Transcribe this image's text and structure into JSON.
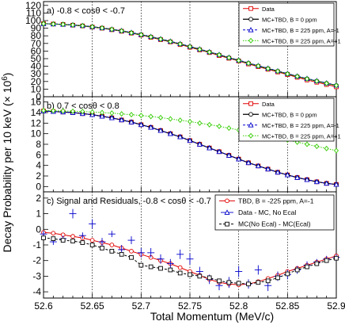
{
  "figure": {
    "ylabel": "Decay Probability per 10 keV (× 10",
    "ylabel_exp": "6",
    "ylabel_close": ")",
    "xlabel": "Total Momentum (MeV/c)"
  },
  "colors": {
    "data": "#e00000",
    "mc_b0": "#000000",
    "mc_am1": "#0000cc",
    "mc_ap1": "#33cc00",
    "tbd_res": "#e00000",
    "res_noecal": "#0000cc",
    "res_diff": "#000000",
    "vline": "#000000"
  },
  "chart_data": [
    {
      "type": "line",
      "panel_label": "a) -0.8 < cosθ < -0.7",
      "ylim": [
        0,
        125
      ],
      "yticks": [
        0,
        10,
        20,
        30,
        40,
        50,
        60,
        70,
        80,
        90,
        100,
        110,
        120
      ],
      "xlim": [
        52.6,
        52.9
      ],
      "legend": {
        "placement": "top-right",
        "entries": [
          "Data",
          "MC+TBD, B = 0 ppm",
          "MC+TBD, B = 225 ppm, A=-1",
          "MC+TBD, B = 225 ppm, A=+1"
        ]
      },
      "x": [
        52.6,
        52.61,
        52.62,
        52.63,
        52.64,
        52.65,
        52.66,
        52.67,
        52.68,
        52.69,
        52.7,
        52.71,
        52.72,
        52.73,
        52.74,
        52.75,
        52.76,
        52.77,
        52.78,
        52.79,
        52.8,
        52.81,
        52.82,
        52.83,
        52.84,
        52.85,
        52.86,
        52.87,
        52.88,
        52.89,
        52.9
      ],
      "series": [
        {
          "name": "Data",
          "values": [
            96,
            95.5,
            95,
            94,
            93,
            91.5,
            90,
            88,
            86,
            83.5,
            81,
            78,
            75,
            72,
            68.5,
            65,
            61.5,
            58,
            54,
            50.5,
            47,
            43,
            39.5,
            36,
            32.5,
            29,
            25.5,
            22,
            19,
            16,
            13
          ]
        },
        {
          "name": "MC+TBD, B = 0 ppm",
          "values": [
            96,
            95.5,
            95,
            94.2,
            93.2,
            91.8,
            90.3,
            88.4,
            86.5,
            84,
            81.5,
            78.6,
            75.6,
            72.5,
            69.2,
            65.8,
            62.2,
            58.6,
            55,
            51.3,
            47.6,
            44,
            40.4,
            37,
            33.5,
            30,
            26.7,
            23.5,
            20.5,
            17.6,
            14.8
          ]
        },
        {
          "name": "MC+TBD, B = 225 ppm, A=-1",
          "values": [
            96,
            95.6,
            95.1,
            94.4,
            93.4,
            92,
            90.5,
            88.7,
            86.8,
            84.4,
            81.9,
            79,
            76,
            72.9,
            69.6,
            66.2,
            62.6,
            59,
            55.4,
            51.7,
            48,
            44.4,
            40.8,
            37.4,
            33.9,
            30.4,
            27.1,
            23.9,
            20.9,
            18,
            15.2
          ]
        },
        {
          "name": "MC+TBD, B = 225 ppm, A=+1",
          "values": [
            96,
            95.5,
            95,
            94.2,
            93.2,
            91.8,
            90.3,
            88.4,
            86.4,
            83.9,
            81.4,
            78.5,
            75.5,
            72.4,
            69.1,
            65.7,
            62.1,
            58.5,
            54.9,
            51.2,
            47.5,
            43.9,
            40.3,
            36.9,
            33.4,
            29.9,
            26.6,
            23.4,
            20.4,
            17.5,
            14.7
          ]
        }
      ]
    },
    {
      "type": "line",
      "panel_label": "b) 0.7 < cosθ < 0.8",
      "ylim": [
        -1,
        17
      ],
      "yticks": [
        0,
        2,
        4,
        6,
        8,
        10,
        12,
        14,
        16
      ],
      "xlim": [
        52.6,
        52.9
      ],
      "legend": {
        "placement": "top-right",
        "entries": [
          "Data",
          "MC+TBD, B = 0 ppm",
          "MC+TBD, B = 225 ppm, A=-1",
          "MC+TBD, B = 225 ppm, A=+1"
        ]
      },
      "x": [
        52.6,
        52.61,
        52.62,
        52.63,
        52.64,
        52.65,
        52.66,
        52.67,
        52.68,
        52.69,
        52.7,
        52.71,
        52.72,
        52.73,
        52.74,
        52.75,
        52.76,
        52.77,
        52.78,
        52.79,
        52.8,
        52.81,
        52.82,
        52.83,
        52.84,
        52.85,
        52.86,
        52.87,
        52.88,
        52.89,
        52.9
      ],
      "series": [
        {
          "name": "Data",
          "values": [
            14.3,
            14.2,
            14.1,
            14,
            13.8,
            13.6,
            13.3,
            13,
            12.6,
            12.2,
            11.7,
            11.2,
            10.6,
            10,
            9.4,
            8.7,
            8,
            7.3,
            6.6,
            5.9,
            5.2,
            4.5,
            3.9,
            3.3,
            2.7,
            2.2,
            1.7,
            1.3,
            0.9,
            0.6,
            0.4
          ]
        },
        {
          "name": "MC+TBD, B = 0 ppm",
          "values": [
            14.3,
            14.2,
            14.1,
            14,
            13.8,
            13.6,
            13.3,
            13,
            12.6,
            12.2,
            11.7,
            11.2,
            10.6,
            10,
            9.4,
            8.7,
            8,
            7.3,
            6.6,
            5.9,
            5.2,
            4.5,
            3.9,
            3.3,
            2.7,
            2.2,
            1.7,
            1.3,
            0.9,
            0.6,
            0.4
          ]
        },
        {
          "name": "MC+TBD, B = 225 ppm, A=-1",
          "values": [
            14.3,
            14.2,
            14.1,
            14,
            13.8,
            13.6,
            13.3,
            13,
            12.6,
            12.2,
            11.7,
            11.2,
            10.6,
            10,
            9.4,
            8.7,
            8,
            7.3,
            6.6,
            5.9,
            5.2,
            4.5,
            3.9,
            3.3,
            2.7,
            2.2,
            1.7,
            1.3,
            0.9,
            0.6,
            0.4
          ]
        },
        {
          "name": "MC+TBD, B = 225 ppm, A=+1",
          "values": [
            14.4,
            14.35,
            14.3,
            14.25,
            14.2,
            14.1,
            14,
            13.9,
            13.75,
            13.6,
            13.45,
            13.25,
            13.05,
            12.8,
            12.55,
            12.3,
            12,
            11.7,
            11.4,
            11.05,
            10.7,
            10.35,
            10,
            9.6,
            9.2,
            8.8,
            8.4,
            8,
            7.6,
            7.2,
            6.8
          ]
        }
      ]
    },
    {
      "type": "scatter",
      "panel_label": "c) Signal and Residuals, -0.8 < cosθ < -0.7",
      "ylim": [
        -4.4,
        2.4
      ],
      "yticks": [
        -4,
        -3,
        -2,
        -1,
        0,
        1,
        2
      ],
      "xlim": [
        52.6,
        52.9
      ],
      "xticks": [
        "52.6",
        "52.65",
        "52.7",
        "52.75",
        "52.8",
        "52.85",
        "52.9"
      ],
      "legend": {
        "placement": "top-right",
        "entries": [
          "TBD, B = -225 ppm, A=-1",
          "Data - MC, No Ecal",
          "MC(No Ecal) - MC(Ecal)"
        ]
      },
      "vlines": [
        52.65,
        52.7,
        52.75,
        52.8,
        52.85
      ],
      "x": [
        52.6,
        52.61,
        52.62,
        52.63,
        52.64,
        52.65,
        52.66,
        52.67,
        52.68,
        52.69,
        52.7,
        52.71,
        52.72,
        52.73,
        52.74,
        52.75,
        52.76,
        52.77,
        52.78,
        52.79,
        52.8,
        52.81,
        52.82,
        52.83,
        52.84,
        52.85,
        52.86,
        52.87,
        52.88,
        52.89,
        52.9
      ],
      "series": [
        {
          "name": "TBD, B = -225 ppm, A=-1",
          "values": [
            -0.2,
            -0.25,
            -0.35,
            -0.45,
            -0.55,
            -0.7,
            -0.85,
            -1.0,
            -1.2,
            -1.4,
            -1.6,
            -1.8,
            -2.0,
            -2.2,
            -2.45,
            -2.7,
            -2.95,
            -3.2,
            -3.4,
            -3.5,
            -3.55,
            -3.5,
            -3.35,
            -3.15,
            -2.95,
            -2.7,
            -2.5,
            -2.3,
            -2.1,
            -1.9,
            -1.7
          ]
        },
        {
          "name": "Data - MC, No Ecal",
          "values": [
            -0.3,
            -0.8,
            -0.6,
            1.0,
            -0.4,
            0.35,
            -0.8,
            -0.3,
            -1.3,
            -0.7,
            -1.5,
            -1.5,
            -1.9,
            -2.2,
            -1.6,
            -1.9,
            -2.7,
            -3.2,
            -3.6,
            -3.4,
            -2.7,
            -3.5,
            -2.6,
            -3.6,
            -3.0,
            -2.9,
            -2.6,
            -2.3,
            -2.1,
            -1.9,
            -1.8
          ]
        },
        {
          "name": "MC(No Ecal) - MC(Ecal)",
          "values": [
            -0.55,
            -0.6,
            -0.7,
            -0.75,
            -0.85,
            -1.0,
            -1.2,
            -1.4,
            -1.6,
            -1.8,
            -2.3,
            -2.4,
            -2.5,
            -2.6,
            -2.8,
            -2.9,
            -3.0,
            -3.1,
            -3.3,
            -3.4,
            -3.45,
            -3.5,
            -3.4,
            -3.3,
            -3.1,
            -2.85,
            -2.6,
            -2.4,
            -2.2,
            -2.0,
            -1.85
          ]
        }
      ],
      "errors": [
        0.2,
        0.2,
        0.2,
        0.3,
        0.2,
        0.3,
        0.25,
        0.2,
        0.3,
        0.25,
        0.3,
        0.3,
        0.3,
        0.3,
        0.3,
        0.35,
        0.3,
        0.3,
        0.3,
        0.35,
        0.35,
        0.3,
        0.3,
        0.35,
        0.3,
        0.3,
        0.25,
        0.25,
        0.2,
        0.2,
        0.2
      ]
    }
  ]
}
